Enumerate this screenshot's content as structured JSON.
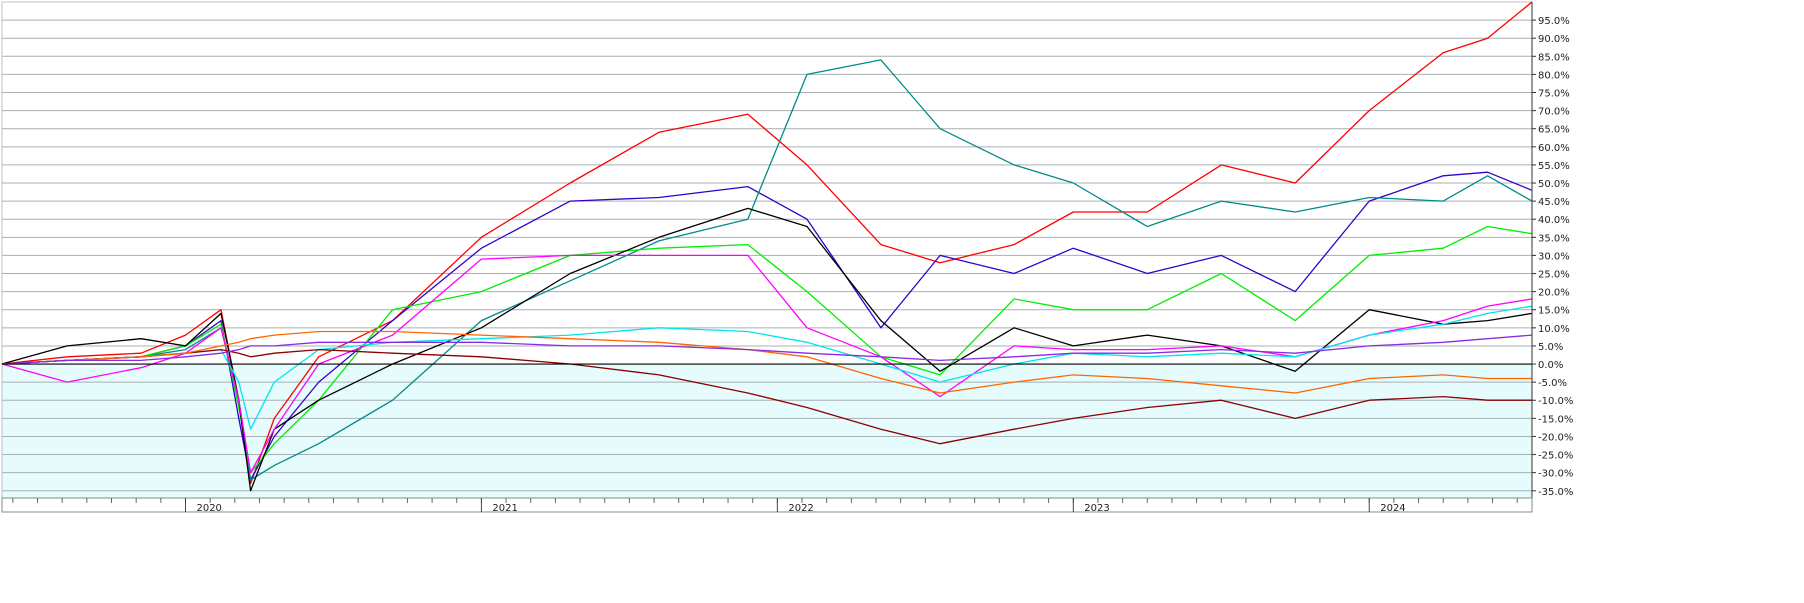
{
  "chart_data": {
    "type": "line",
    "title": "",
    "xlabel": "",
    "ylabel": "",
    "x_ticks": [
      "2020",
      "2021",
      "2022",
      "2023",
      "2024"
    ],
    "y_ticks": [
      "-35.0%",
      "-30.0%",
      "-25.0%",
      "-20.0%",
      "-15.0%",
      "-10.0%",
      "-5.0%",
      "0.0%",
      "5.0%",
      "10.0%",
      "15.0%",
      "20.0%",
      "25.0%",
      "30.0%",
      "35.0%",
      "40.0%",
      "45.0%",
      "50.0%",
      "55.0%",
      "60.0%",
      "65.0%",
      "70.0%",
      "75.0%",
      "80.0%",
      "85.0%",
      "90.0%",
      "95.0%"
    ],
    "xlim": [
      2019.38,
      2024.55
    ],
    "ylim": [
      -37,
      100
    ],
    "grid": true,
    "background_colors": {
      "above_zero": "#ffffff",
      "below_zero": "#e6fbfb",
      "grid": "#a8b0b4"
    },
    "x": [
      2019.38,
      2019.6,
      2019.85,
      2020.0,
      2020.12,
      2020.18,
      2020.22,
      2020.3,
      2020.45,
      2020.7,
      2021.0,
      2021.3,
      2021.6,
      2021.9,
      2022.1,
      2022.35,
      2022.55,
      2022.8,
      2023.0,
      2023.25,
      2023.5,
      2023.75,
      2024.0,
      2024.25,
      2024.4,
      2024.55
    ],
    "series": [
      {
        "color": "#ff0000",
        "values": [
          0,
          2,
          3,
          8,
          15,
          -10,
          -33,
          -15,
          2,
          12,
          35,
          50,
          64,
          69,
          55,
          33,
          28,
          33,
          42,
          42,
          55,
          50,
          70,
          86,
          90,
          100
        ]
      },
      {
        "color": "#3300cc",
        "values": [
          0,
          1,
          2,
          5,
          12,
          -15,
          -32,
          -20,
          -5,
          12,
          32,
          45,
          46,
          49,
          40,
          10,
          30,
          25,
          32,
          25,
          30,
          20,
          45,
          52,
          53,
          48
        ]
      },
      {
        "color": "#008b8b",
        "values": [
          0,
          1,
          2,
          4,
          10,
          -10,
          -32,
          -28,
          -22,
          -10,
          12,
          23,
          34,
          40,
          80,
          84,
          65,
          55,
          50,
          38,
          45,
          42,
          46,
          45,
          52,
          45
        ]
      },
      {
        "color": "#00ee00",
        "values": [
          0,
          1,
          2,
          5,
          11,
          -12,
          -30,
          -22,
          -10,
          15,
          20,
          30,
          32,
          33,
          20,
          2,
          -3,
          18,
          15,
          15,
          25,
          12,
          30,
          32,
          38,
          36
        ]
      },
      {
        "color": "#000000",
        "values": [
          0,
          5,
          7,
          5,
          14,
          -10,
          -35,
          -18,
          -10,
          0,
          10,
          25,
          35,
          43,
          38,
          12,
          -2,
          10,
          5,
          8,
          5,
          -2,
          15,
          11,
          12,
          14
        ]
      },
      {
        "color": "#ff00ff",
        "values": [
          0,
          -5,
          -1,
          3,
          10,
          -10,
          -30,
          -18,
          0,
          8,
          29,
          30,
          30,
          30,
          10,
          2,
          -9,
          5,
          4,
          4,
          5,
          2,
          8,
          12,
          16,
          18
        ]
      },
      {
        "color": "#00e5ee",
        "values": [
          0,
          1,
          2,
          3,
          4,
          -5,
          -18,
          -5,
          4,
          6,
          7,
          8,
          10,
          9,
          6,
          0,
          -5,
          0,
          3,
          2,
          3,
          2,
          8,
          11,
          14,
          16
        ]
      },
      {
        "color": "#8b0000",
        "values": [
          0,
          1,
          2,
          3,
          4,
          3,
          2,
          3,
          4,
          3,
          2,
          0,
          -3,
          -8,
          -12,
          -18,
          -22,
          -18,
          -15,
          -12,
          -10,
          -15,
          -10,
          -9,
          -10,
          -10
        ]
      },
      {
        "color": "#ff6600",
        "values": [
          0,
          1,
          2,
          3,
          5,
          6,
          7,
          8,
          9,
          9,
          8,
          7,
          6,
          4,
          2,
          -4,
          -8,
          -5,
          -3,
          -4,
          -6,
          -8,
          -4,
          -3,
          -4,
          -4
        ]
      },
      {
        "color": "#8a2be2",
        "values": [
          0,
          1,
          1,
          2,
          3,
          4,
          5,
          5,
          6,
          6,
          6,
          5,
          5,
          4,
          3,
          2,
          1,
          2,
          3,
          3,
          4,
          3,
          5,
          6,
          7,
          8
        ]
      }
    ]
  }
}
